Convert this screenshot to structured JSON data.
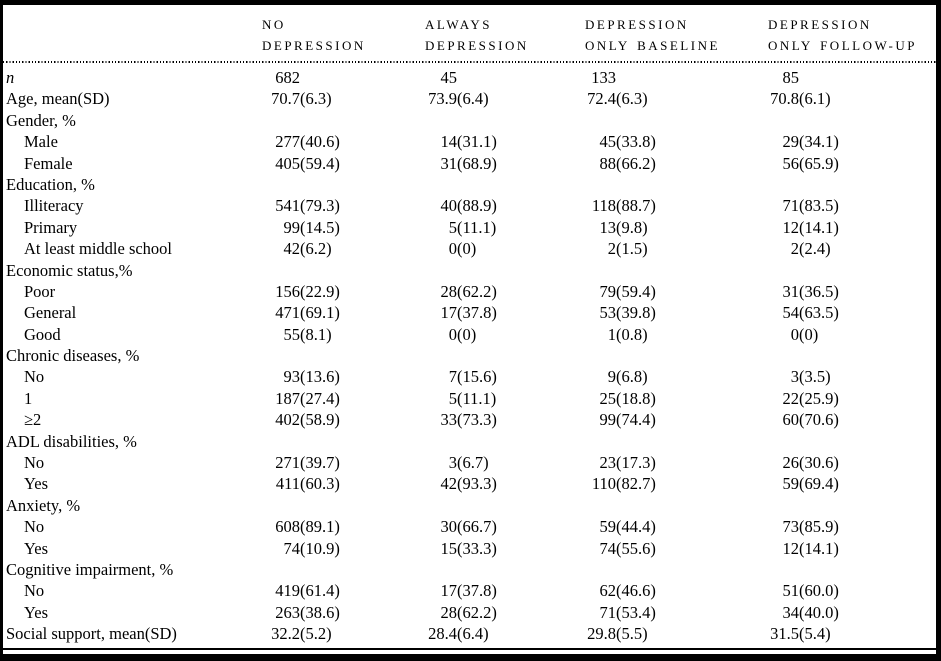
{
  "table": {
    "header": {
      "columns": [
        {
          "line1": "NO",
          "line2": "DEPRESSION"
        },
        {
          "line1": "ALWAYS",
          "line2": "DEPRESSION"
        },
        {
          "line1": "DEPRESSION",
          "line2": "ONLY BASELINE"
        },
        {
          "line1": "DEPRESSION",
          "line2": "ONLY FOLLOW-UP"
        }
      ]
    },
    "rows": [
      {
        "label": "n",
        "italic": true,
        "indent": 0,
        "values": [
          "682",
          "45",
          "133",
          "85"
        ]
      },
      {
        "label": "Age, mean(SD)",
        "indent": 0,
        "values": [
          "70.7(6.3)",
          "73.9(6.4)",
          "72.4(6.3)",
          "70.8(6.1)"
        ]
      },
      {
        "label": "Gender, %",
        "indent": 0,
        "values": null
      },
      {
        "label": "Male",
        "indent": 1,
        "values": [
          "277(40.6)",
          "14(31.1)",
          "45(33.8)",
          "29(34.1)"
        ]
      },
      {
        "label": "Female",
        "indent": 1,
        "values": [
          "405(59.4)",
          "31(68.9)",
          "88(66.2)",
          "56(65.9)"
        ]
      },
      {
        "label": "Education, %",
        "indent": 0,
        "values": null
      },
      {
        "label": "Illiteracy",
        "indent": 1,
        "values": [
          "541(79.3)",
          "40(88.9)",
          "118(88.7)",
          "71(83.5)"
        ]
      },
      {
        "label": "Primary",
        "indent": 1,
        "values": [
          "99(14.5)",
          "5(11.1)",
          "13(9.8)",
          "12(14.1)"
        ]
      },
      {
        "label": "At least middle school",
        "indent": 1,
        "values": [
          "42(6.2)",
          "0(0)",
          "2(1.5)",
          "2(2.4)"
        ]
      },
      {
        "label": "Economic status,%",
        "indent": 0,
        "values": null
      },
      {
        "label": "Poor",
        "indent": 1,
        "values": [
          "156(22.9)",
          "28(62.2)",
          "79(59.4)",
          "31(36.5)"
        ]
      },
      {
        "label": "General",
        "indent": 1,
        "values": [
          "471(69.1)",
          "17(37.8)",
          "53(39.8)",
          "54(63.5)"
        ]
      },
      {
        "label": "Good",
        "indent": 1,
        "values": [
          "55(8.1)",
          "0(0)",
          "1(0.8)",
          "0(0)"
        ]
      },
      {
        "label": "Chronic diseases, %",
        "indent": 0,
        "values": null
      },
      {
        "label": "No",
        "indent": 1,
        "values": [
          "93(13.6)",
          "7(15.6)",
          "9(6.8)",
          "3(3.5)"
        ]
      },
      {
        "label": "1",
        "indent": 1,
        "values": [
          "187(27.4)",
          "5(11.1)",
          "25(18.8)",
          "22(25.9)"
        ]
      },
      {
        "label": "≥2",
        "indent": 1,
        "values": [
          "402(58.9)",
          "33(73.3)",
          "99(74.4)",
          "60(70.6)"
        ]
      },
      {
        "label": "ADL disabilities, %",
        "indent": 0,
        "values": null
      },
      {
        "label": "No",
        "indent": 1,
        "values": [
          "271(39.7)",
          "3(6.7)",
          "23(17.3)",
          "26(30.6)"
        ]
      },
      {
        "label": "Yes",
        "indent": 1,
        "values": [
          "411(60.3)",
          "42(93.3)",
          "110(82.7)",
          "59(69.4)"
        ]
      },
      {
        "label": "Anxiety, %",
        "indent": 0,
        "values": null
      },
      {
        "label": "No",
        "indent": 1,
        "values": [
          "608(89.1)",
          "30(66.7)",
          "59(44.4)",
          "73(85.9)"
        ]
      },
      {
        "label": "Yes",
        "indent": 1,
        "values": [
          "74(10.9)",
          "15(33.3)",
          "74(55.6)",
          "12(14.1)"
        ]
      },
      {
        "label": "Cognitive impairment, %",
        "indent": 0,
        "values": null
      },
      {
        "label": "No",
        "indent": 1,
        "values": [
          "419(61.4)",
          "17(37.8)",
          "62(46.6)",
          "51(60.0)"
        ]
      },
      {
        "label": "Yes",
        "indent": 1,
        "values": [
          "263(38.6)",
          "28(62.2)",
          "71(53.4)",
          "34(40.0)"
        ]
      },
      {
        "label": "Social support, mean(SD)",
        "indent": 0,
        "values": [
          "32.2(5.2)",
          "28.4(6.4)",
          "29.8(5.5)",
          "31.5(5.4)"
        ]
      }
    ],
    "colors": {
      "text": "#000000",
      "background": "#ffffff",
      "frame": "#000000"
    }
  }
}
